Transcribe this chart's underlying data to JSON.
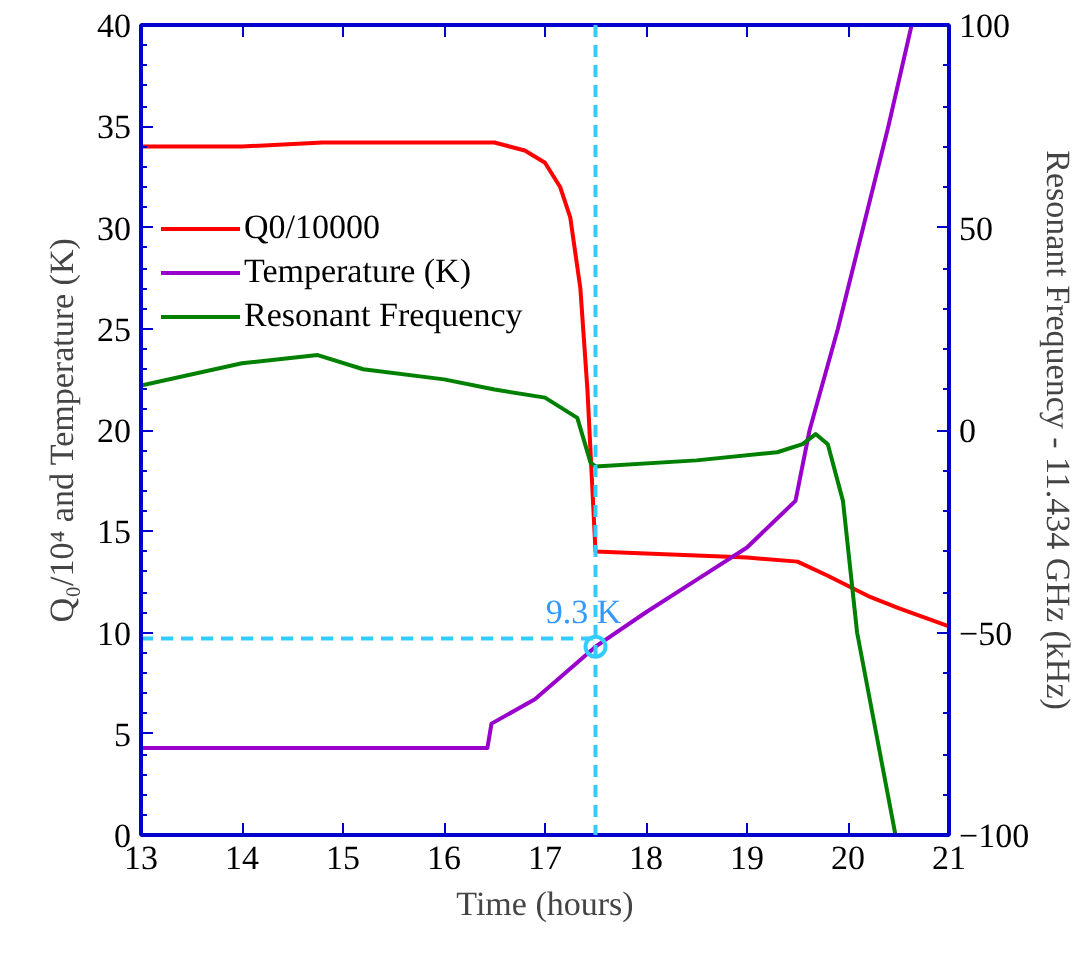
{
  "chart_data": {
    "type": "line",
    "xlabel": "Time (hours)",
    "ylabel": "Q₀/10⁴ and Temperature (K)",
    "y2label": "Resonant Frequency - 11.434 GHz (kHz)",
    "xlim": [
      13,
      21
    ],
    "xticks": [
      13,
      14,
      15,
      16,
      17,
      18,
      19,
      20,
      21
    ],
    "ylim": [
      0,
      40
    ],
    "yticks": [
      0,
      5,
      10,
      15,
      20,
      25,
      30,
      35,
      40
    ],
    "y2lim": [
      -100,
      100
    ],
    "y2ticks": [
      -100,
      -50,
      0,
      50,
      100
    ],
    "grid": false,
    "legend": "top left",
    "line_style": "solid",
    "series": [
      {
        "name": "Q0/10000",
        "color": "#ff0000",
        "x": [
          13,
          14,
          14.8,
          15.5,
          16.5,
          16.8,
          17.0,
          17.15,
          17.25,
          17.35,
          17.42,
          17.46,
          17.5,
          18,
          19,
          19.5,
          19.8,
          20.2,
          20.5,
          21
        ],
        "values": [
          34.0,
          34.0,
          34.2,
          34.2,
          34.2,
          33.8,
          33.2,
          32.0,
          30.5,
          27,
          22,
          18,
          14.0,
          13.9,
          13.7,
          13.5,
          12.8,
          11.8,
          11.2,
          10.3
        ]
      },
      {
        "name": "Temperature (K)",
        "color": "#9900cc",
        "x": [
          13,
          16.43,
          16.47,
          16.9,
          17.2,
          17.5,
          18,
          18.5,
          19,
          19.48,
          19.62,
          19.9,
          20.15,
          20.4,
          20.63
        ],
        "values": [
          4.3,
          4.3,
          5.5,
          6.7,
          8.0,
          9.3,
          11.0,
          12.6,
          14.2,
          16.5,
          20,
          25,
          30,
          35,
          40
        ]
      },
      {
        "name": "Resonant Frequency",
        "color": "#008000",
        "axis": "y2",
        "x": [
          13,
          14,
          14.75,
          15.2,
          16,
          16.5,
          17.0,
          17.32,
          17.45,
          17.5,
          18.5,
          19.3,
          19.55,
          19.68,
          19.8,
          19.95,
          20.09,
          20.28,
          20.47
        ],
        "values": [
          11,
          16.5,
          18.5,
          15,
          12.5,
          10,
          8,
          3,
          -8,
          -9,
          -7.5,
          -5.5,
          -3.5,
          -1,
          -3.5,
          -17.5,
          -50,
          -75,
          -100
        ]
      },
      {
        "type": "scatter",
        "marker": "circle",
        "color": "#33ccff",
        "x": [
          17.5
        ],
        "values": [
          9.3
        ]
      }
    ],
    "ref_lines": [
      {
        "axis": "x",
        "value": 17.5,
        "color": "#33ccff",
        "line_style": "dashed"
      },
      {
        "axis": "y",
        "value": 9.7,
        "color": "#33ccff",
        "line_style": "dashed"
      }
    ],
    "annotations": [
      {
        "text": "9.3 K",
        "x": 17.5,
        "y": 9.3
      }
    ]
  }
}
